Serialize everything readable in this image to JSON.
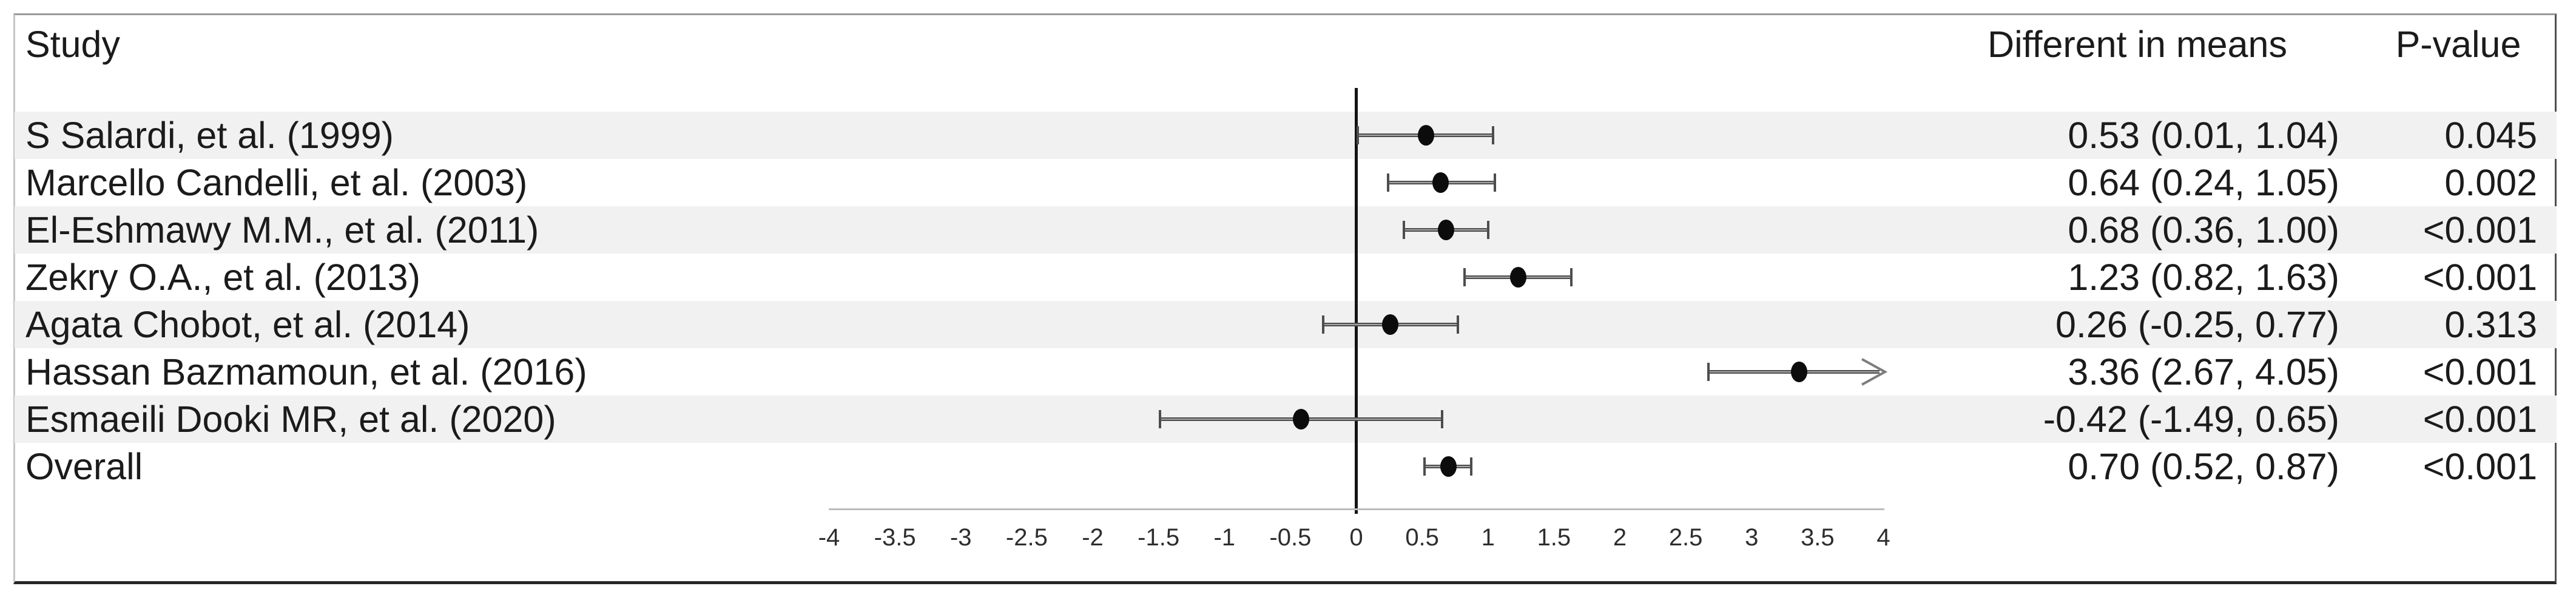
{
  "columns": {
    "study": "Study",
    "means": "Different in means",
    "pvalue": "P-value"
  },
  "chart_data": {
    "type": "forest",
    "title": "",
    "legend": null,
    "grid": false,
    "axis": {
      "min": -4,
      "max": 4,
      "step": 0.5,
      "ref_line": 0
    },
    "columns": {
      "study": "Study",
      "means": "Different in means",
      "pvalue": "P-value"
    },
    "rows": [
      {
        "study": "S Salardi, et al. (1999)",
        "mean": 0.53,
        "ci_low": 0.01,
        "ci_high": 1.04,
        "label": "0.53 (0.01, 1.04)",
        "p_value": "0.045"
      },
      {
        "study": "Marcello Candelli, et al. (2003)",
        "mean": 0.64,
        "ci_low": 0.24,
        "ci_high": 1.05,
        "label": "0.64 (0.24, 1.05)",
        "p_value": "0.002"
      },
      {
        "study": "El-Eshmawy M.M., et al. (2011)",
        "mean": 0.68,
        "ci_low": 0.36,
        "ci_high": 1.0,
        "label": "0.68 (0.36, 1.00)",
        "p_value": "<0.001"
      },
      {
        "study": "Zekry O.A., et al. (2013)",
        "mean": 1.23,
        "ci_low": 0.82,
        "ci_high": 1.63,
        "label": "1.23 (0.82, 1.63)",
        "p_value": "<0.001"
      },
      {
        "study": "Agata Chobot, et al. (2014)",
        "mean": 0.26,
        "ci_low": -0.25,
        "ci_high": 0.77,
        "label": "0.26 (-0.25, 0.77)",
        "p_value": "0.313"
      },
      {
        "study": "Hassan Bazmamoun, et al. (2016)",
        "mean": 3.36,
        "ci_low": 2.67,
        "ci_high": 4.05,
        "label": "3.36 (2.67, 4.05)",
        "p_value": "<0.001"
      },
      {
        "study": "Esmaeili Dooki MR, et al. (2020)",
        "mean": -0.42,
        "ci_low": -1.49,
        "ci_high": 0.65,
        "label": "-0.42 (-1.49, 0.65)",
        "p_value": "<0.001"
      },
      {
        "study": "Overall",
        "mean": 0.7,
        "ci_low": 0.52,
        "ci_high": 0.87,
        "label": "0.70 (0.52, 0.87)",
        "p_value": "<0.001"
      }
    ]
  }
}
